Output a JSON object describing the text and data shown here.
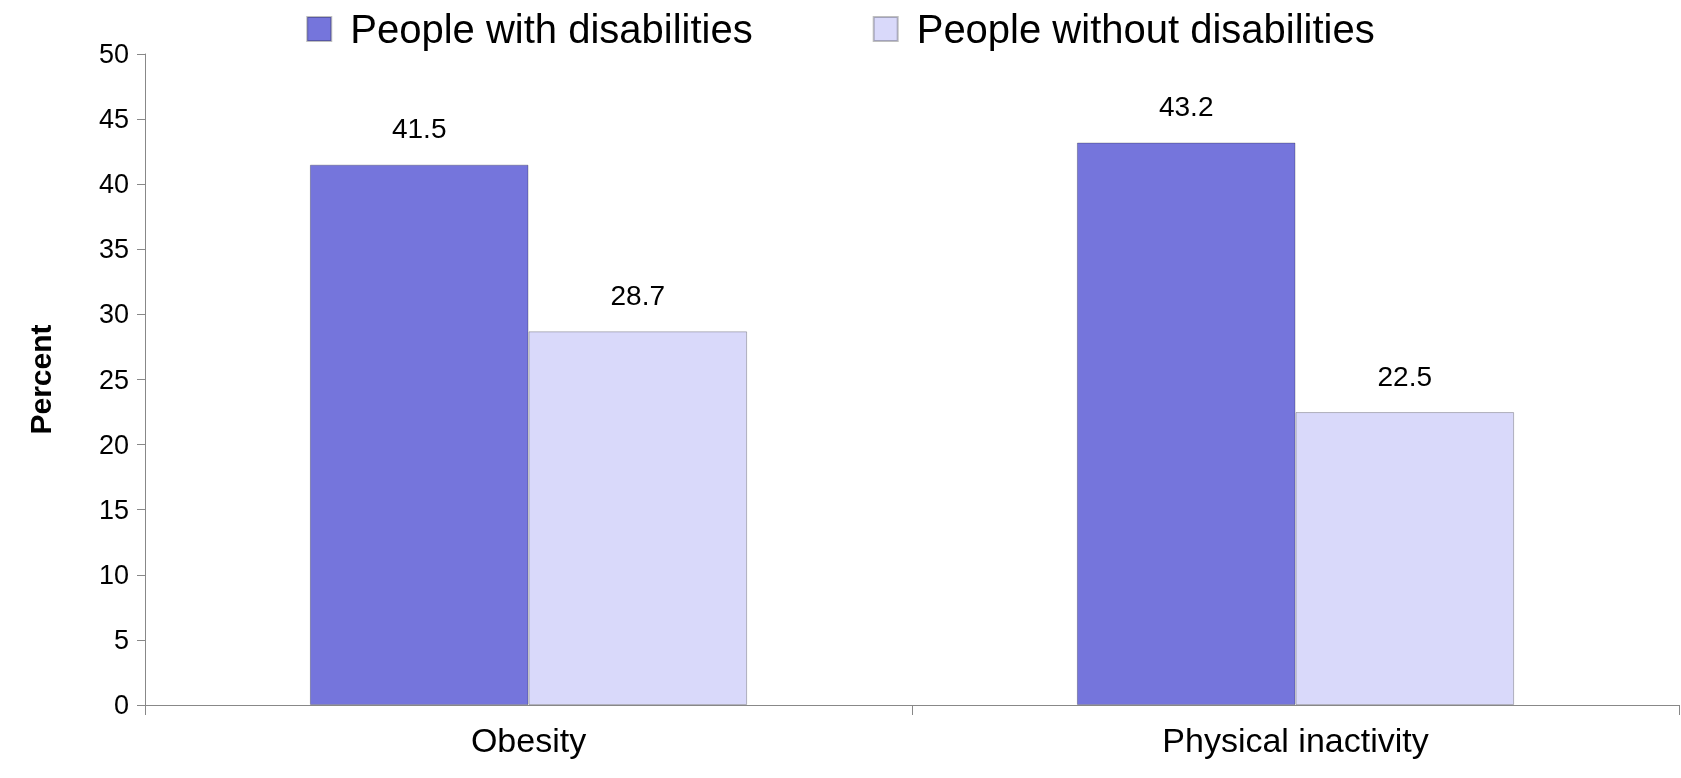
{
  "chart_data": {
    "type": "bar",
    "ylabel": "Percent",
    "categories": [
      "Obesity",
      "Physical inactivity"
    ],
    "series": [
      {
        "name": "People with disabilities",
        "color": "#7575dc",
        "values": [
          41.5,
          43.2
        ]
      },
      {
        "name": "People without disabilities",
        "color": "#d9d9fa",
        "values": [
          28.7,
          22.5
        ]
      }
    ],
    "ylim": [
      0,
      50
    ],
    "yticks": [
      0,
      5,
      10,
      15,
      20,
      25,
      30,
      35,
      40,
      45,
      50
    ],
    "grid": false,
    "legend": "top",
    "data_labels": true
  }
}
